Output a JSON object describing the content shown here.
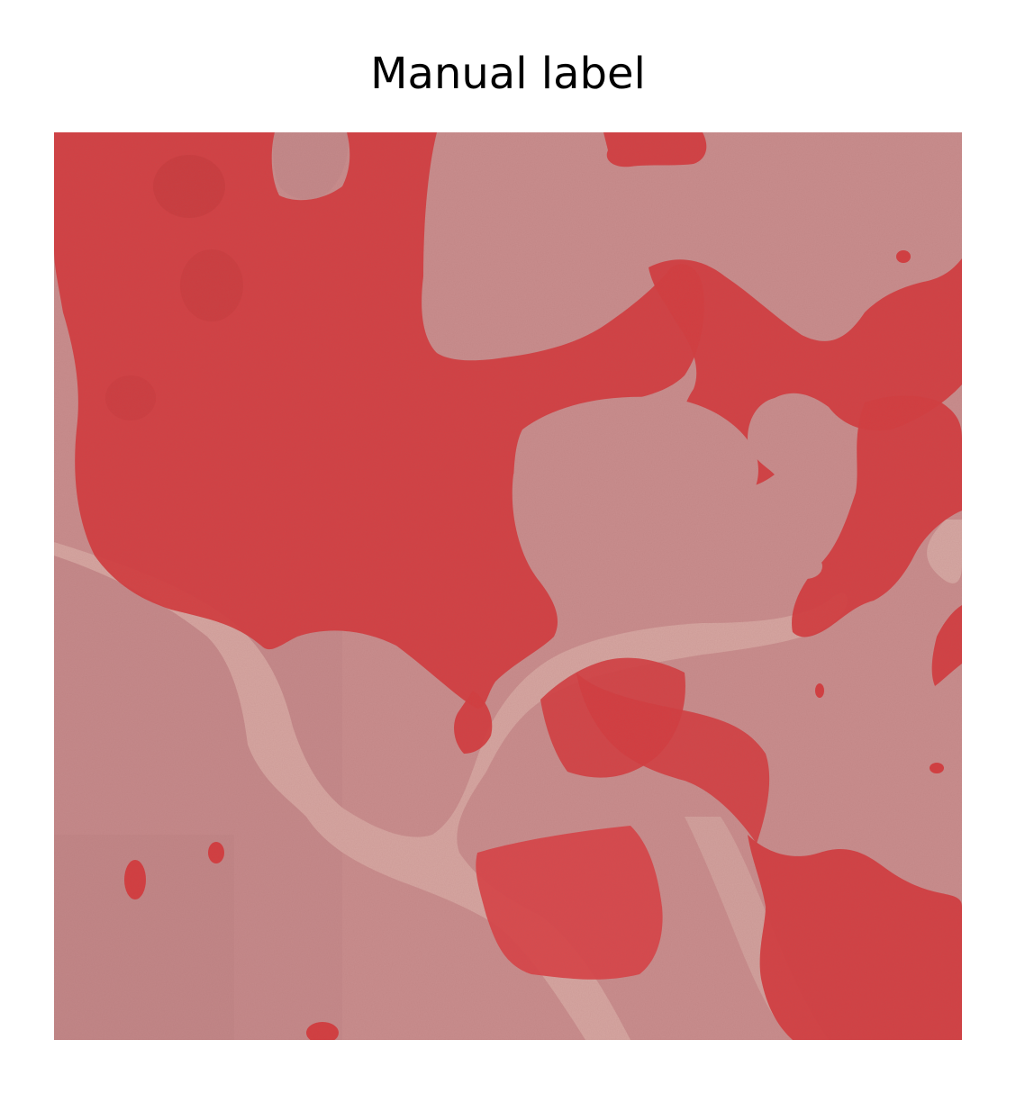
{
  "figure": {
    "title": "Manual label"
  },
  "image": {
    "description_icon": "aerial-image-with-mask-overlay",
    "colors": {
      "background_unlabeled": "#c98e8e",
      "background_unlabeled_dark": "#bb7f80",
      "channel_light": "#d8aaa3",
      "label_overlay": "#d43c3f",
      "label_overlay_dark": "#c7383c"
    }
  }
}
